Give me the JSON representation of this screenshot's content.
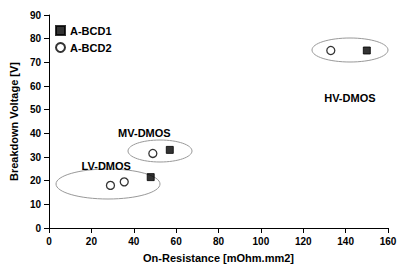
{
  "chart_data": {
    "type": "scatter",
    "xlabel": "On-Resistance [mOhm.mm2]",
    "ylabel": "Breakdown Voltage [V]",
    "xlim": [
      0,
      160
    ],
    "xticks": [
      0,
      20,
      40,
      60,
      80,
      100,
      120,
      140,
      160
    ],
    "ylim": [
      0,
      90
    ],
    "yticks": [
      0,
      10,
      20,
      30,
      40,
      50,
      60,
      70,
      80,
      90
    ],
    "grid": false,
    "legend": "upper left",
    "series": [
      {
        "name": "A-BCD1",
        "color": "#000000",
        "marker": "square",
        "x": [
          48,
          57,
          150
        ],
        "values": [
          21.5,
          33,
          75
        ]
      },
      {
        "name": "A-BCD2",
        "color": "#000000",
        "marker": "open_circle",
        "x": [
          29,
          35.5,
          49,
          133
        ],
        "values": [
          18,
          19.5,
          31.5,
          75
        ]
      }
    ],
    "annotations": [
      {
        "text": "LV-DMOS",
        "x": 27,
        "y": 26
      },
      {
        "text": "MV-DMOS",
        "x": 45,
        "y": 40
      },
      {
        "text": "HV-DMOS",
        "x": 142,
        "y": 55
      }
    ]
  }
}
